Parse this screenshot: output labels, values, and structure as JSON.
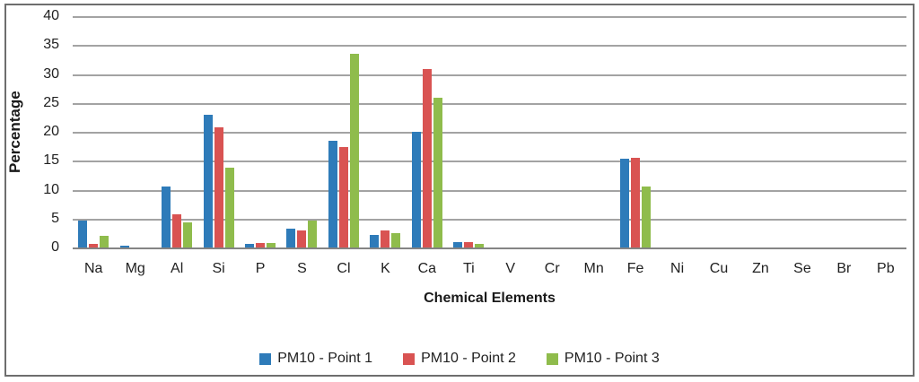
{
  "chart_data": {
    "type": "bar",
    "title": "",
    "xlabel": "Chemical Elements",
    "ylabel": "Percentage",
    "ylim": [
      0,
      40
    ],
    "ytick_step": 5,
    "yticks": [
      40,
      35,
      30,
      25,
      20,
      15,
      10,
      5,
      0
    ],
    "grid": true,
    "legend_position": "bottom-center",
    "categories": [
      "Na",
      "Mg",
      "Al",
      "Si",
      "P",
      "S",
      "Cl",
      "K",
      "Ca",
      "Ti",
      "V",
      "Cr",
      "Mn",
      "Fe",
      "Ni",
      "Cu",
      "Zn",
      "Se",
      "Br",
      "Pb"
    ],
    "series": [
      {
        "name": "PM10 - Point 1",
        "color": "#2e7bb9",
        "values": [
          4.7,
          0.35,
          10.5,
          23.0,
          0.55,
          3.2,
          18.4,
          2.1,
          20.0,
          1.0,
          0,
          0,
          0,
          15.3,
          0,
          0,
          0,
          0,
          0,
          0
        ]
      },
      {
        "name": "PM10 - Point 2",
        "color": "#d95352",
        "values": [
          0.65,
          0,
          5.8,
          20.8,
          0.85,
          2.9,
          17.4,
          3.0,
          30.8,
          1.0,
          0,
          0,
          0,
          15.5,
          0,
          0,
          0,
          0,
          0,
          0
        ]
      },
      {
        "name": "PM10 - Point 3",
        "color": "#8fbc4c",
        "values": [
          2.0,
          0,
          4.3,
          13.8,
          0.8,
          4.7,
          33.5,
          2.5,
          25.9,
          0.6,
          0,
          0,
          0,
          10.5,
          0,
          0,
          0,
          0,
          0,
          0
        ]
      }
    ]
  },
  "colors": {
    "gridline": "#a3a3a3",
    "axis_line": "#848484",
    "frame_border": "#6e6e6e",
    "text": "#212121"
  }
}
